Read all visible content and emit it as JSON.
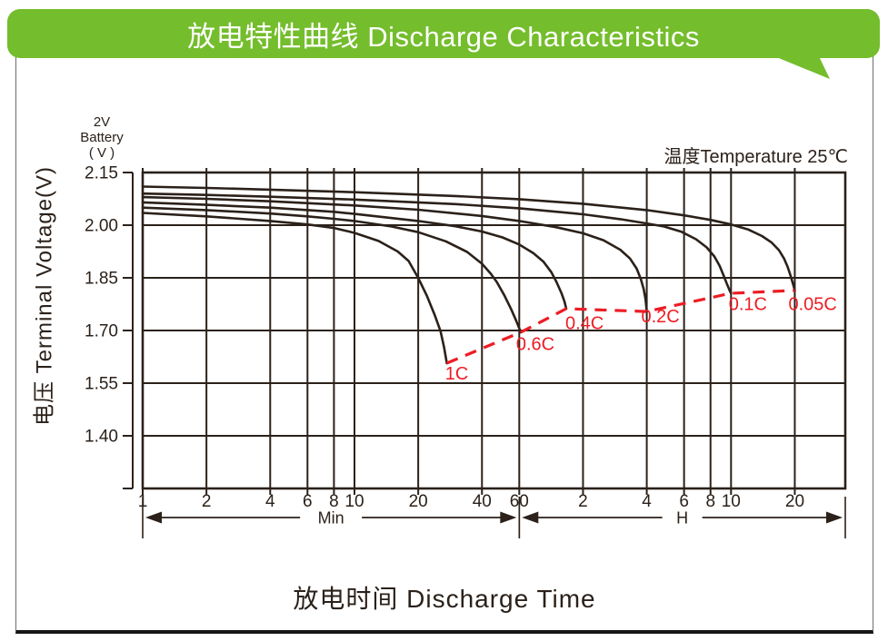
{
  "banner": {
    "title": "放电特性曲线  Discharge Characteristics",
    "bg_color": "#74bd2c",
    "text_color": "#ffffff"
  },
  "corner_label": {
    "l1": "2V",
    "l2": "Battery",
    "l3": "( V )"
  },
  "ink_color": "#2b211a",
  "chart_data": {
    "type": "line",
    "title": "放电特性曲线 Discharge Characteristics",
    "xlabel": "放电时间  Discharge Time",
    "ylabel": "电压 Terminal Voltage(V)",
    "annotation": "温度Temperature 25℃",
    "x_scale": "log",
    "xlim_minutes": [
      1,
      2078
    ],
    "ylim": [
      1.25,
      2.15
    ],
    "grid": true,
    "legend_position": "none",
    "y_ticks": [
      {
        "value": 2.15,
        "label": "2.15"
      },
      {
        "value": 2.0,
        "label": "2.00"
      },
      {
        "value": 1.85,
        "label": "1.85"
      },
      {
        "value": 1.7,
        "label": "1.70"
      },
      {
        "value": 1.55,
        "label": "1.55"
      },
      {
        "value": 1.4,
        "label": "1.40"
      }
    ],
    "x_ticks": [
      {
        "t": 1,
        "label": "1",
        "unit": "min"
      },
      {
        "t": 2,
        "label": "2",
        "unit": "min"
      },
      {
        "t": 4,
        "label": "4",
        "unit": "min"
      },
      {
        "t": 6,
        "label": "6",
        "unit": "min"
      },
      {
        "t": 8,
        "label": "8",
        "unit": "min"
      },
      {
        "t": 10,
        "label": "10",
        "unit": "min"
      },
      {
        "t": 20,
        "label": "20",
        "unit": "min"
      },
      {
        "t": 40,
        "label": "40",
        "unit": "min"
      },
      {
        "t": 60,
        "label": "60",
        "unit": "min"
      },
      {
        "t": 120,
        "label": "2",
        "unit": "h"
      },
      {
        "t": 240,
        "label": "4",
        "unit": "h"
      },
      {
        "t": 360,
        "label": "6",
        "unit": "h"
      },
      {
        "t": 480,
        "label": "8",
        "unit": "h"
      },
      {
        "t": 600,
        "label": "10",
        "unit": "h"
      },
      {
        "t": 1200,
        "label": "20",
        "unit": "h"
      }
    ],
    "x_unit_ranges": [
      {
        "label": "Min",
        "from_min": 1,
        "to_min": 60
      },
      {
        "label": "H",
        "from_min": 60,
        "to_min": 2078
      }
    ],
    "curve_color": "#2b211a",
    "series": [
      {
        "name": "1C",
        "points": [
          [
            1,
            2.035
          ],
          [
            2,
            2.025
          ],
          [
            4,
            2.012
          ],
          [
            6,
            2.002
          ],
          [
            8,
            1.992
          ],
          [
            10,
            1.978
          ],
          [
            13,
            1.955
          ],
          [
            16,
            1.925
          ],
          [
            18,
            1.898
          ],
          [
            20,
            1.85
          ],
          [
            22,
            1.798
          ],
          [
            24,
            1.742
          ],
          [
            25.5,
            1.698
          ],
          [
            26.5,
            1.652
          ],
          [
            27.3,
            1.607
          ]
        ]
      },
      {
        "name": "0.6C",
        "points": [
          [
            1,
            2.05
          ],
          [
            2,
            2.043
          ],
          [
            4,
            2.033
          ],
          [
            6,
            2.025
          ],
          [
            8,
            2.018
          ],
          [
            10,
            2.012
          ],
          [
            15,
            1.996
          ],
          [
            20,
            1.98
          ],
          [
            27,
            1.954
          ],
          [
            34,
            1.924
          ],
          [
            40,
            1.89
          ],
          [
            44,
            1.862
          ],
          [
            47,
            1.838
          ],
          [
            51,
            1.8
          ],
          [
            55,
            1.76
          ],
          [
            58,
            1.728
          ],
          [
            60,
            1.706
          ],
          [
            61,
            1.695
          ]
        ]
      },
      {
        "name": "0.4C",
        "points": [
          [
            1,
            2.065
          ],
          [
            2,
            2.058
          ],
          [
            4,
            2.05
          ],
          [
            8,
            2.038
          ],
          [
            10,
            2.032
          ],
          [
            20,
            2.012
          ],
          [
            30,
            1.997
          ],
          [
            40,
            1.982
          ],
          [
            50,
            1.965
          ],
          [
            60,
            1.945
          ],
          [
            70,
            1.92
          ],
          [
            78,
            1.896
          ],
          [
            85,
            1.866
          ],
          [
            90,
            1.838
          ],
          [
            95,
            1.806
          ],
          [
            98,
            1.783
          ],
          [
            100,
            1.762
          ]
        ]
      },
      {
        "name": "0.2C",
        "points": [
          [
            1,
            2.08
          ],
          [
            2,
            2.075
          ],
          [
            4,
            2.068
          ],
          [
            10,
            2.056
          ],
          [
            20,
            2.044
          ],
          [
            40,
            2.026
          ],
          [
            60,
            2.012
          ],
          [
            90,
            1.994
          ],
          [
            120,
            1.977
          ],
          [
            150,
            1.957
          ],
          [
            180,
            1.93
          ],
          [
            200,
            1.905
          ],
          [
            215,
            1.876
          ],
          [
            225,
            1.846
          ],
          [
            232,
            1.818
          ],
          [
            237,
            1.788
          ],
          [
            240,
            1.754
          ]
        ]
      },
      {
        "name": "0.1C",
        "points": [
          [
            1,
            2.09
          ],
          [
            2,
            2.086
          ],
          [
            4,
            2.081
          ],
          [
            10,
            2.073
          ],
          [
            30,
            2.06
          ],
          [
            60,
            2.048
          ],
          [
            120,
            2.031
          ],
          [
            180,
            2.017
          ],
          [
            240,
            2.005
          ],
          [
            290,
            1.996
          ],
          [
            350,
            1.981
          ],
          [
            410,
            1.96
          ],
          [
            460,
            1.937
          ],
          [
            500,
            1.911
          ],
          [
            530,
            1.884
          ],
          [
            555,
            1.855
          ],
          [
            575,
            1.831
          ],
          [
            590,
            1.815
          ],
          [
            600,
            1.806
          ]
        ]
      },
      {
        "name": "0.05C",
        "points": [
          [
            1,
            2.11
          ],
          [
            2,
            2.106
          ],
          [
            4,
            2.101
          ],
          [
            10,
            2.094
          ],
          [
            30,
            2.083
          ],
          [
            60,
            2.074
          ],
          [
            120,
            2.061
          ],
          [
            240,
            2.043
          ],
          [
            360,
            2.028
          ],
          [
            480,
            2.015
          ],
          [
            600,
            2.002
          ],
          [
            720,
            1.988
          ],
          [
            840,
            1.969
          ],
          [
            930,
            1.951
          ],
          [
            1010,
            1.929
          ],
          [
            1070,
            1.904
          ],
          [
            1110,
            1.881
          ],
          [
            1150,
            1.854
          ],
          [
            1175,
            1.834
          ],
          [
            1192,
            1.821
          ],
          [
            1200,
            1.814
          ]
        ]
      }
    ],
    "cutoff_line": {
      "color": "#ed1c24",
      "style": "dashed",
      "points": [
        [
          27.3,
          1.607
        ],
        [
          61,
          1.695
        ],
        [
          100,
          1.762
        ],
        [
          240,
          1.754
        ],
        [
          600,
          1.806
        ],
        [
          1200,
          1.814
        ]
      ]
    },
    "series_labels": [
      {
        "text": "1C",
        "t": 26.8,
        "v": 1.576
      },
      {
        "text": "0.6C",
        "t": 58,
        "v": 1.66
      },
      {
        "text": "0.4C",
        "t": 99,
        "v": 1.72
      },
      {
        "text": "0.2C",
        "t": 226,
        "v": 1.739
      },
      {
        "text": "0.1C",
        "t": 585,
        "v": 1.774
      },
      {
        "text": "0.05C",
        "t": 1120,
        "v": 1.774
      }
    ],
    "label_color": "#ed1c24"
  }
}
